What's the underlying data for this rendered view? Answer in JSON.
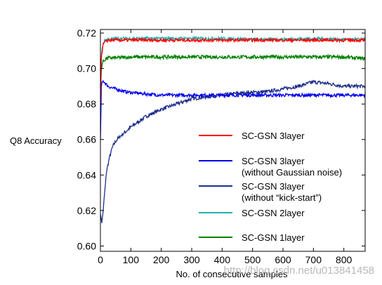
{
  "chart_data": {
    "type": "line",
    "title": "",
    "xlabel": "No. of consecutive samples",
    "ylabel": "Q8 Accuracy",
    "xlim": [
      0,
      870
    ],
    "ylim": [
      0.597,
      0.722
    ],
    "x_ticks": [
      0,
      100,
      200,
      300,
      400,
      500,
      600,
      700,
      800
    ],
    "y_ticks": [
      0.6,
      0.62,
      0.64,
      0.66,
      0.68,
      0.7,
      0.72
    ],
    "x_tick_labels": [
      "0",
      "100",
      "200",
      "300",
      "400",
      "500",
      "600",
      "700",
      "800"
    ],
    "y_tick_labels": [
      "0.60",
      "0.62",
      "0.64",
      "0.66",
      "0.68",
      "0.70",
      "0.72"
    ],
    "grid": false,
    "legend_position": "center-right",
    "series": [
      {
        "name": "SC-GSN 3layer",
        "color": "#ff0000",
        "x": [
          0,
          3,
          8,
          15,
          25,
          50,
          100,
          150,
          200,
          300,
          400,
          500,
          600,
          700,
          800,
          870
        ],
        "y": [
          0.68,
          0.705,
          0.713,
          0.715,
          0.716,
          0.716,
          0.716,
          0.716,
          0.716,
          0.716,
          0.716,
          0.716,
          0.716,
          0.716,
          0.716,
          0.716
        ]
      },
      {
        "name_lines": [
          "SC-GSN 3layer",
          "(without Gaussian noise)"
        ],
        "color": "#0000ee",
        "x": [
          0,
          3,
          8,
          15,
          25,
          40,
          60,
          80,
          100,
          130,
          160,
          200,
          300,
          400,
          500,
          600,
          700,
          800,
          870
        ],
        "y": [
          0.66,
          0.69,
          0.693,
          0.692,
          0.69,
          0.689,
          0.688,
          0.687,
          0.6865,
          0.686,
          0.6855,
          0.685,
          0.685,
          0.685,
          0.685,
          0.685,
          0.685,
          0.685,
          0.685
        ]
      },
      {
        "name_lines": [
          "SC-GSN 3layer",
          "(without “kick-start”)"
        ],
        "color": "#1f2f8a",
        "x": [
          0,
          5,
          10,
          15,
          20,
          30,
          40,
          50,
          60,
          80,
          100,
          125,
          150,
          175,
          200,
          250,
          300,
          350,
          400,
          450,
          500,
          550,
          600,
          650,
          700,
          750,
          800,
          870
        ],
        "y": [
          0.618,
          0.613,
          0.622,
          0.632,
          0.642,
          0.65,
          0.656,
          0.659,
          0.661,
          0.664,
          0.667,
          0.67,
          0.673,
          0.675,
          0.677,
          0.68,
          0.683,
          0.684,
          0.685,
          0.686,
          0.6865,
          0.687,
          0.6885,
          0.69,
          0.6925,
          0.6915,
          0.69,
          0.69
        ]
      },
      {
        "name": "SC-GSN 2layer",
        "color": "#20b2b2",
        "x": [
          0,
          3,
          8,
          15,
          25,
          50,
          100,
          150,
          200,
          300,
          400,
          500,
          600,
          700,
          800,
          870
        ],
        "y": [
          0.685,
          0.707,
          0.714,
          0.716,
          0.7165,
          0.717,
          0.717,
          0.717,
          0.717,
          0.717,
          0.717,
          0.7165,
          0.7165,
          0.717,
          0.7165,
          0.7165
        ]
      },
      {
        "name": "SC-GSN 1layer",
        "color": "#008000",
        "x": [
          0,
          3,
          8,
          15,
          25,
          50,
          100,
          150,
          200,
          300,
          400,
          500,
          600,
          700,
          800,
          870
        ],
        "y": [
          0.685,
          0.7,
          0.704,
          0.705,
          0.706,
          0.706,
          0.7065,
          0.7065,
          0.7065,
          0.7065,
          0.7065,
          0.7065,
          0.7065,
          0.7065,
          0.7065,
          0.7055
        ]
      }
    ]
  },
  "watermark": "http://blog.csdn.net/u013841458"
}
